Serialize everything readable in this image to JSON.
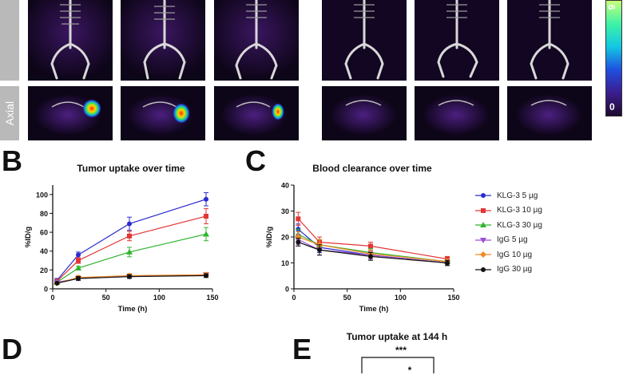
{
  "panel_a": {
    "row_label": "Axial",
    "colorbar": {
      "min_label": "0",
      "max_label": "6",
      "colors": [
        "#1e0a2e",
        "#3b1d8f",
        "#1f4fe0",
        "#12c7e3",
        "#3ef2a6",
        "#c8ff7a"
      ]
    }
  },
  "panel_letters": {
    "b": "B",
    "c": "C",
    "d": "D",
    "e": "E"
  },
  "legend": [
    {
      "label": "KLG-3 5 µg",
      "color": "#2b2bd0",
      "marker": "circle"
    },
    {
      "label": "KLG-3 10 µg",
      "color": "#e23636",
      "marker": "square"
    },
    {
      "label": "KLG-3 30 µg",
      "color": "#2fb52f",
      "marker": "triangle-up"
    },
    {
      "label": "IgG 5 µg",
      "color": "#9b4fd6",
      "marker": "triangle-down"
    },
    {
      "label": "IgG 10 µg",
      "color": "#f08a24",
      "marker": "diamond"
    },
    {
      "label": "IgG 30 µg",
      "color": "#111111",
      "marker": "circle"
    }
  ],
  "chart_data": [
    {
      "type": "line",
      "title": "Tumor uptake over time",
      "xlabel": "Time (h)",
      "ylabel": "%ID/g",
      "xlim": [
        0,
        150
      ],
      "ylim": [
        0,
        110
      ],
      "xticks": [
        0,
        50,
        100,
        150
      ],
      "yticks": [
        0,
        20,
        40,
        60,
        80,
        100
      ],
      "x": [
        4,
        24,
        72,
        144
      ],
      "series": [
        {
          "name": "KLG-3 5 µg",
          "values": [
            9,
            36,
            69,
            95
          ],
          "errors": [
            2,
            3,
            7,
            7
          ]
        },
        {
          "name": "KLG-3 10 µg",
          "values": [
            8,
            30,
            56,
            77
          ],
          "errors": [
            2,
            3,
            5,
            8
          ]
        },
        {
          "name": "KLG-3 30 µg",
          "values": [
            7,
            22,
            39,
            58
          ],
          "errors": [
            1,
            2,
            5,
            7
          ]
        },
        {
          "name": "IgG 5 µg",
          "values": [
            7,
            11,
            13,
            15
          ],
          "errors": [
            1,
            2,
            2,
            2
          ]
        },
        {
          "name": "IgG 10 µg",
          "values": [
            6,
            12,
            14,
            15
          ],
          "errors": [
            1,
            2,
            2,
            2
          ]
        },
        {
          "name": "IgG 30 µg",
          "values": [
            6,
            11,
            13,
            14
          ],
          "errors": [
            1,
            2,
            2,
            2
          ]
        }
      ]
    },
    {
      "type": "line",
      "title": "Blood clearance over time",
      "xlabel": "Time (h)",
      "ylabel": "%ID/g",
      "xlim": [
        0,
        150
      ],
      "ylim": [
        0,
        40
      ],
      "xticks": [
        0,
        50,
        100,
        150
      ],
      "yticks": [
        0,
        10,
        20,
        30,
        40
      ],
      "x": [
        4,
        24,
        72,
        144
      ],
      "series": [
        {
          "name": "KLG-3 5 µg",
          "values": [
            23,
            16,
            13,
            10
          ],
          "errors": [
            2,
            2,
            1.5,
            1
          ]
        },
        {
          "name": "KLG-3 10 µg",
          "values": [
            27,
            18,
            16.5,
            11.5
          ],
          "errors": [
            2.5,
            2,
            1.5,
            1
          ]
        },
        {
          "name": "KLG-3 30 µg",
          "values": [
            21,
            17,
            14,
            10.5
          ],
          "errors": [
            2,
            2,
            1.5,
            1
          ]
        },
        {
          "name": "IgG 5 µg",
          "values": [
            19,
            15,
            13,
            10
          ],
          "errors": [
            2,
            2,
            1.5,
            1
          ]
        },
        {
          "name": "IgG 10 µg",
          "values": [
            20,
            17,
            13.5,
            10.5
          ],
          "errors": [
            2,
            2,
            1.5,
            1
          ]
        },
        {
          "name": "IgG 30 µg",
          "values": [
            18,
            15,
            12.5,
            10
          ],
          "errors": [
            1.5,
            2,
            1.5,
            1
          ]
        }
      ]
    },
    {
      "type": "bar",
      "title": "Tumor uptake at 144 h",
      "annotations": [
        "***",
        "*"
      ]
    }
  ]
}
